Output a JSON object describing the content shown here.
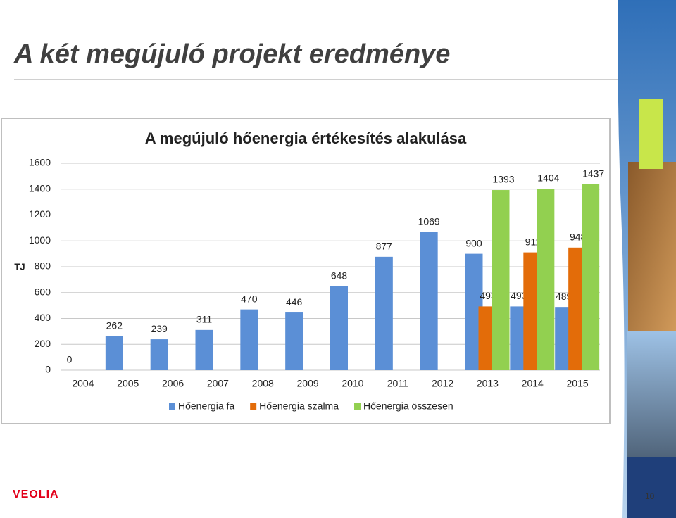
{
  "slide": {
    "title": "A két megújuló projekt eredménye",
    "logo": "VEOLIA",
    "page_number": "10"
  },
  "chart_data": {
    "type": "bar",
    "title": "A megújuló hőenergia értékesítés alakulása",
    "y_label": "TJ",
    "categories": [
      "2004",
      "2005",
      "2006",
      "2007",
      "2008",
      "2009",
      "2010",
      "2011",
      "2012",
      "2013",
      "2014",
      "2015"
    ],
    "series": [
      {
        "name": "Hőenergia fa",
        "color": "#5b8fd6",
        "values": [
          0,
          262,
          239,
          311,
          470,
          446,
          648,
          877,
          1069,
          900,
          493,
          489
        ]
      },
      {
        "name": "Hőenergia szalma",
        "color": "#e36c09",
        "values": [
          null,
          null,
          null,
          null,
          null,
          null,
          null,
          null,
          null,
          493,
          911,
          948
        ]
      },
      {
        "name": "Hőenergia összesen",
        "color": "#92d050",
        "values": [
          null,
          null,
          null,
          null,
          null,
          null,
          null,
          null,
          null,
          1393,
          1404,
          1437
        ]
      }
    ],
    "ylim": [
      0,
      1600
    ],
    "yticks": [
      0,
      200,
      400,
      600,
      800,
      1000,
      1200,
      1400,
      1600
    ],
    "grid": true,
    "legend": "bottom"
  }
}
